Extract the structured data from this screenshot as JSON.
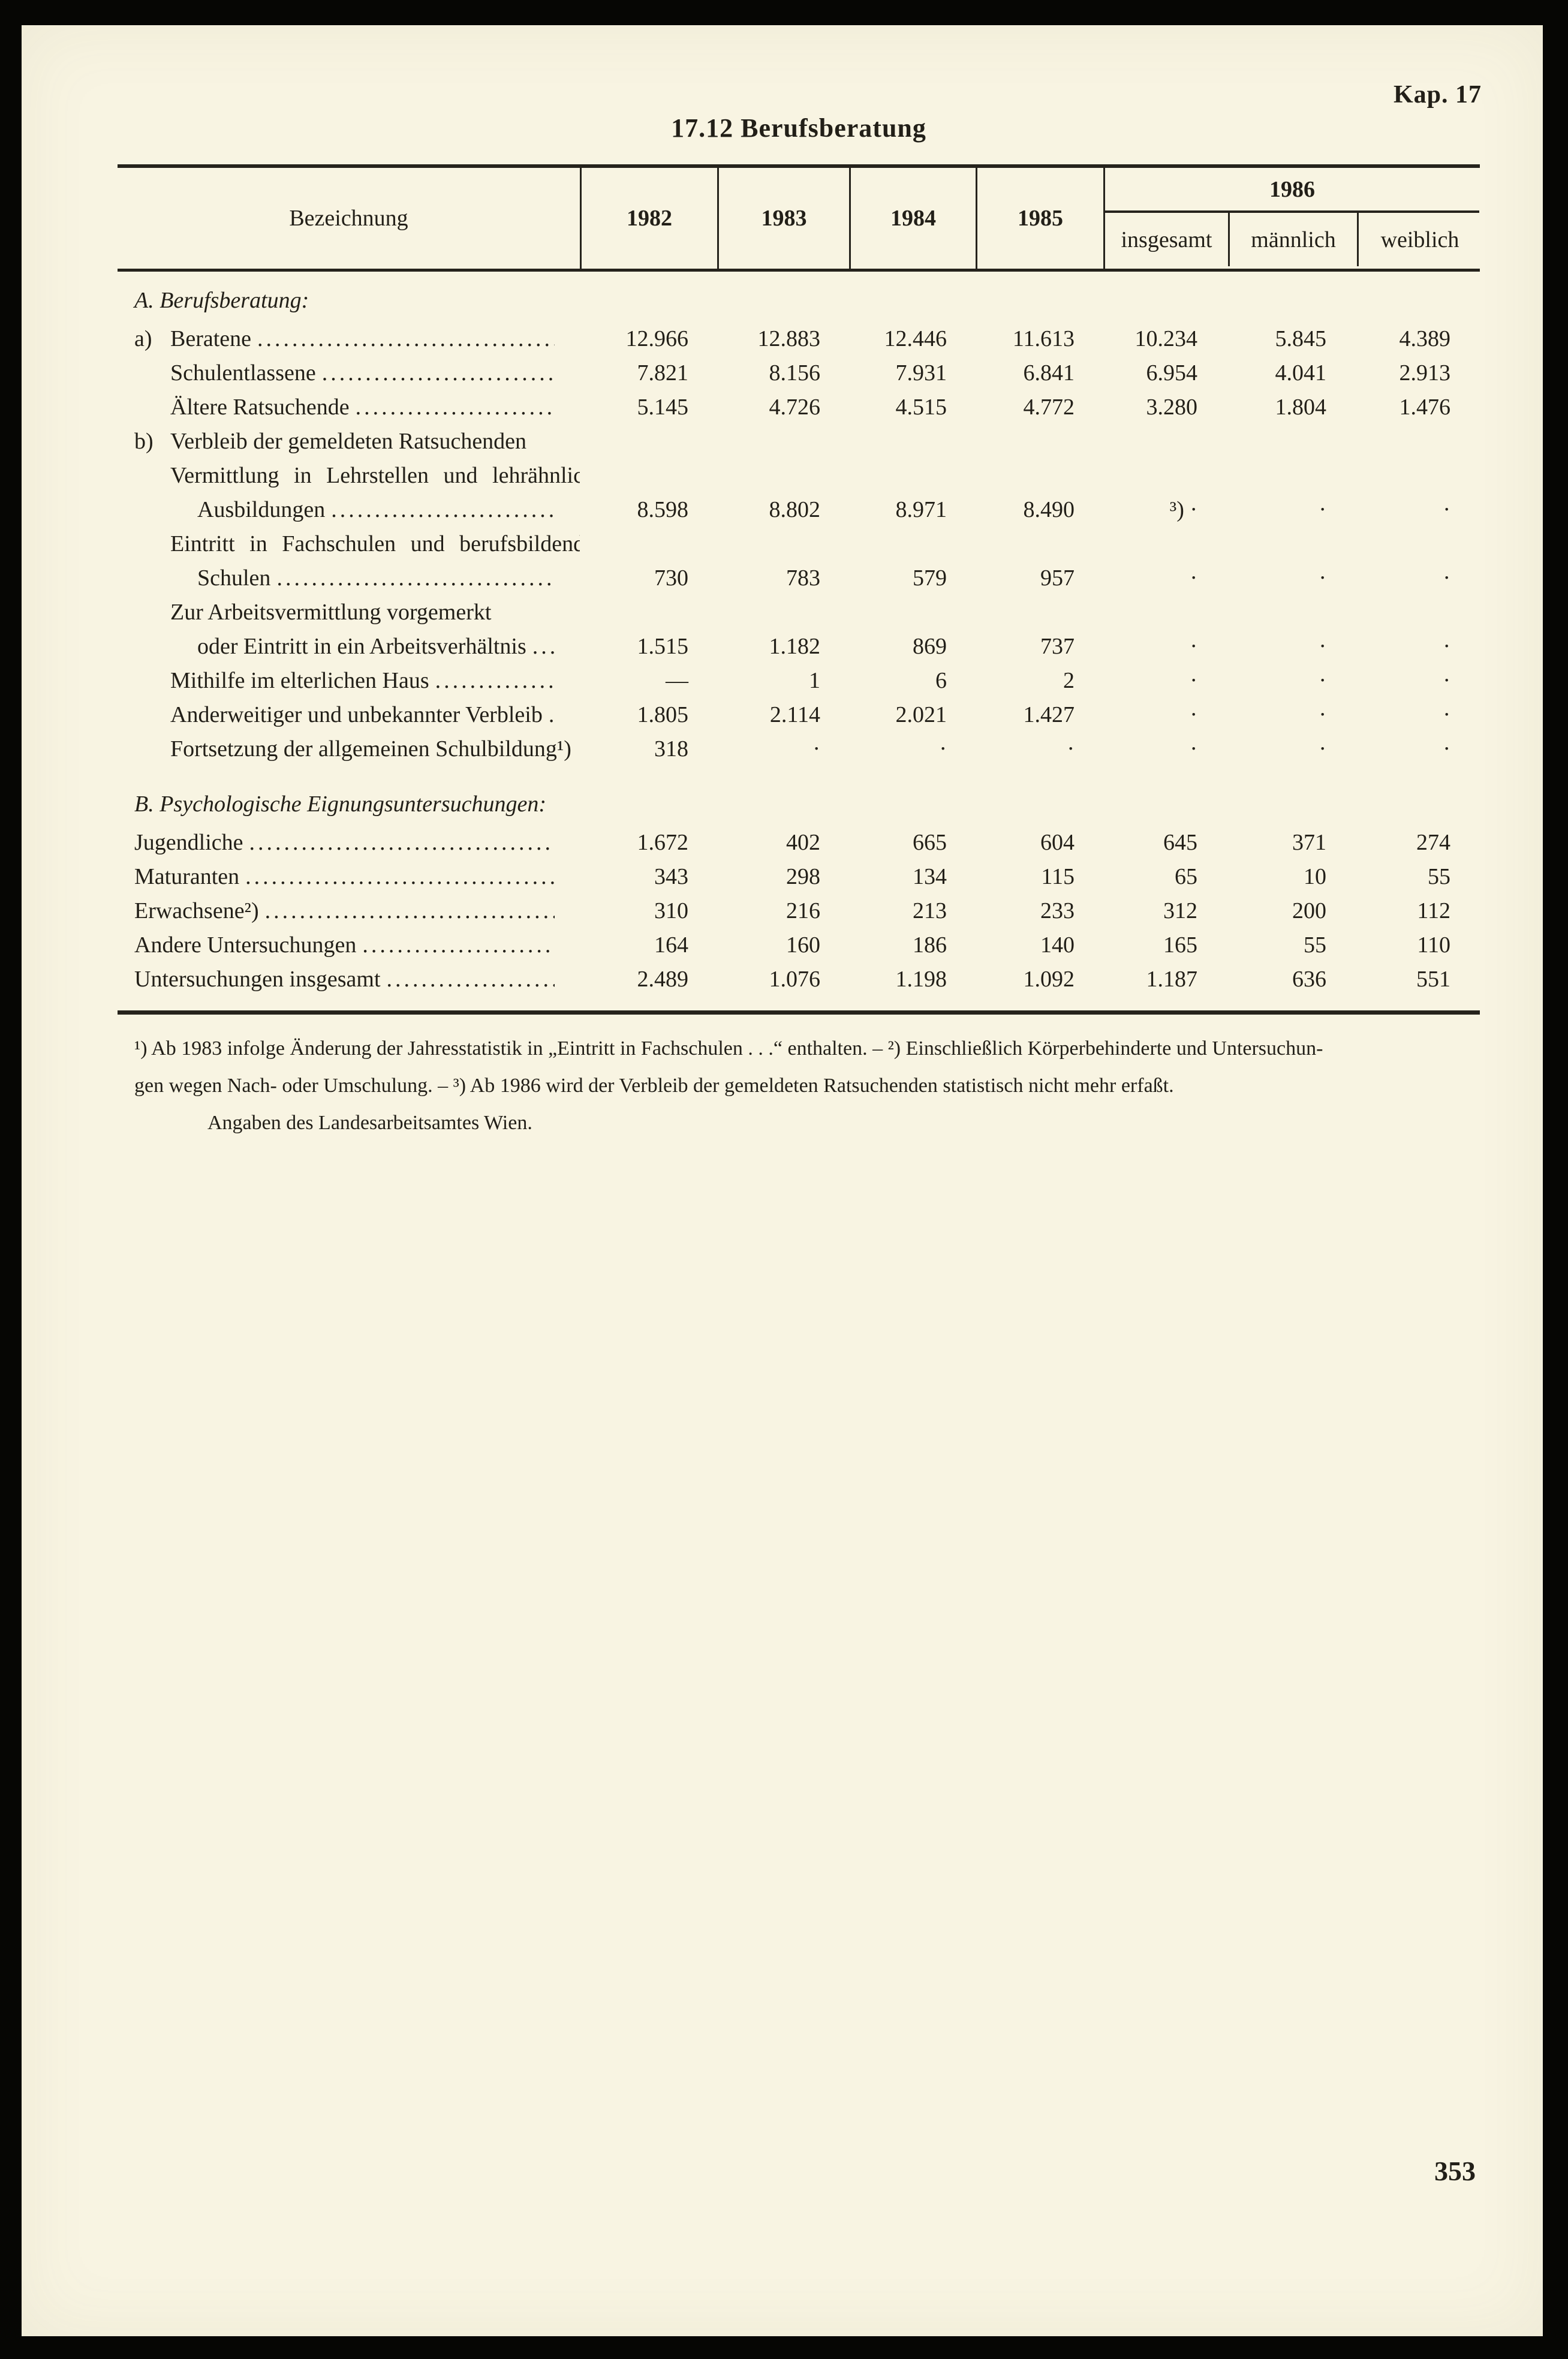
{
  "page": {
    "chapter_label": "Kap. 17",
    "title": "17.12 Berufsberatung",
    "page_number": "353"
  },
  "table": {
    "header": {
      "name_col": "Bezeichnung",
      "years": [
        "1982",
        "1983",
        "1984",
        "1985"
      ],
      "group_year": "1986",
      "group_sub": [
        "insgesamt",
        "männlich",
        "weiblich"
      ]
    },
    "sections": [
      {
        "heading": "A. Berufsberatung:",
        "rows": [
          {
            "prefix": "a)",
            "label": "Beratene",
            "indent": 1,
            "leader": true,
            "wide_spacing": false,
            "values": [
              "12.966",
              "12.883",
              "12.446",
              "11.613",
              "10.234",
              "5.845",
              "4.389"
            ]
          },
          {
            "prefix": "",
            "label": "Schulentlassene",
            "indent": 1,
            "leader": true,
            "wide_spacing": false,
            "values": [
              "7.821",
              "8.156",
              "7.931",
              "6.841",
              "6.954",
              "4.041",
              "2.913"
            ]
          },
          {
            "prefix": "",
            "label": "Ältere Ratsuchende",
            "indent": 1,
            "leader": true,
            "wide_spacing": false,
            "values": [
              "5.145",
              "4.726",
              "4.515",
              "4.772",
              "3.280",
              "1.804",
              "1.476"
            ]
          },
          {
            "prefix": "b)",
            "label": "Verbleib der gemeldeten Ratsuchenden",
            "indent": 1,
            "leader": false,
            "wide_spacing": false,
            "values": [
              "",
              "",
              "",
              "",
              "",
              "",
              ""
            ]
          },
          {
            "prefix": "",
            "label": "Vermittlung in Lehrstellen und lehrähnliche",
            "indent": 1,
            "leader": false,
            "wide_spacing": true,
            "values": [
              "",
              "",
              "",
              "",
              "",
              "",
              ""
            ]
          },
          {
            "prefix": "",
            "label": "Ausbildungen",
            "indent": 2,
            "leader": true,
            "wide_spacing": false,
            "values": [
              "8.598",
              "8.802",
              "8.971",
              "8.490",
              "³) ·",
              "·",
              "·"
            ]
          },
          {
            "prefix": "",
            "label": "Eintritt in Fachschulen und berufsbildende",
            "indent": 1,
            "leader": false,
            "wide_spacing": true,
            "values": [
              "",
              "",
              "",
              "",
              "",
              "",
              ""
            ]
          },
          {
            "prefix": "",
            "label": "Schulen",
            "indent": 2,
            "leader": true,
            "wide_spacing": false,
            "values": [
              "730",
              "783",
              "579",
              "957",
              "·",
              "·",
              "·"
            ]
          },
          {
            "prefix": "",
            "label": "Zur Arbeitsvermittlung vorgemerkt",
            "indent": 1,
            "leader": false,
            "wide_spacing": false,
            "values": [
              "",
              "",
              "",
              "",
              "",
              "",
              ""
            ]
          },
          {
            "prefix": "",
            "label": "oder Eintritt in ein Arbeitsverhältnis",
            "indent": 2,
            "leader": true,
            "wide_spacing": false,
            "values": [
              "1.515",
              "1.182",
              "869",
              "737",
              "·",
              "·",
              "·"
            ]
          },
          {
            "prefix": "",
            "label": "Mithilfe im elterlichen Haus",
            "indent": 1,
            "leader": true,
            "wide_spacing": false,
            "values": [
              "—",
              "1",
              "6",
              "2",
              "·",
              "·",
              "·"
            ]
          },
          {
            "prefix": "",
            "label": "Anderweitiger und unbekannter Verbleib",
            "indent": 1,
            "leader": true,
            "wide_spacing": false,
            "values": [
              "1.805",
              "2.114",
              "2.021",
              "1.427",
              "·",
              "·",
              "·"
            ]
          },
          {
            "prefix": "",
            "label": "Fortsetzung der allgemeinen Schulbildung¹)",
            "indent": 1,
            "leader": true,
            "wide_spacing": false,
            "values": [
              "318",
              "·",
              "·",
              "·",
              "·",
              "·",
              "·"
            ]
          }
        ]
      },
      {
        "heading": "B. Psychologische Eignungsuntersuchungen:",
        "rows": [
          {
            "prefix": "",
            "label": "Jugendliche",
            "indent": 0,
            "leader": true,
            "wide_spacing": false,
            "values": [
              "1.672",
              "402",
              "665",
              "604",
              "645",
              "371",
              "274"
            ]
          },
          {
            "prefix": "",
            "label": "Maturanten",
            "indent": 0,
            "leader": true,
            "wide_spacing": false,
            "values": [
              "343",
              "298",
              "134",
              "115",
              "65",
              "10",
              "55"
            ]
          },
          {
            "prefix": "",
            "label": "Erwachsene²)",
            "indent": 0,
            "leader": true,
            "wide_spacing": false,
            "values": [
              "310",
              "216",
              "213",
              "233",
              "312",
              "200",
              "112"
            ]
          },
          {
            "prefix": "",
            "label": "Andere Untersuchungen",
            "indent": 0,
            "leader": true,
            "wide_spacing": false,
            "values": [
              "164",
              "160",
              "186",
              "140",
              "165",
              "55",
              "110"
            ]
          },
          {
            "prefix": "",
            "label": "Untersuchungen insgesamt",
            "indent": 0,
            "leader": true,
            "wide_spacing": false,
            "values": [
              "2.489",
              "1.076",
              "1.198",
              "1.092",
              "1.187",
              "636",
              "551"
            ]
          }
        ]
      }
    ]
  },
  "footnotes": {
    "line1": "¹) Ab 1983 infolge Änderung der Jahresstatistik in „Eintritt in Fachschulen . . .“ enthalten. – ²) Einschließlich Körperbehinderte und Untersuchun-",
    "line2": "gen wegen Nach- oder Umschulung. – ³) Ab 1986 wird der Verbleib der gemeldeten Ratsuchenden statistisch nicht mehr erfaßt.",
    "source": "Angaben des Landesarbeitsamtes Wien."
  }
}
